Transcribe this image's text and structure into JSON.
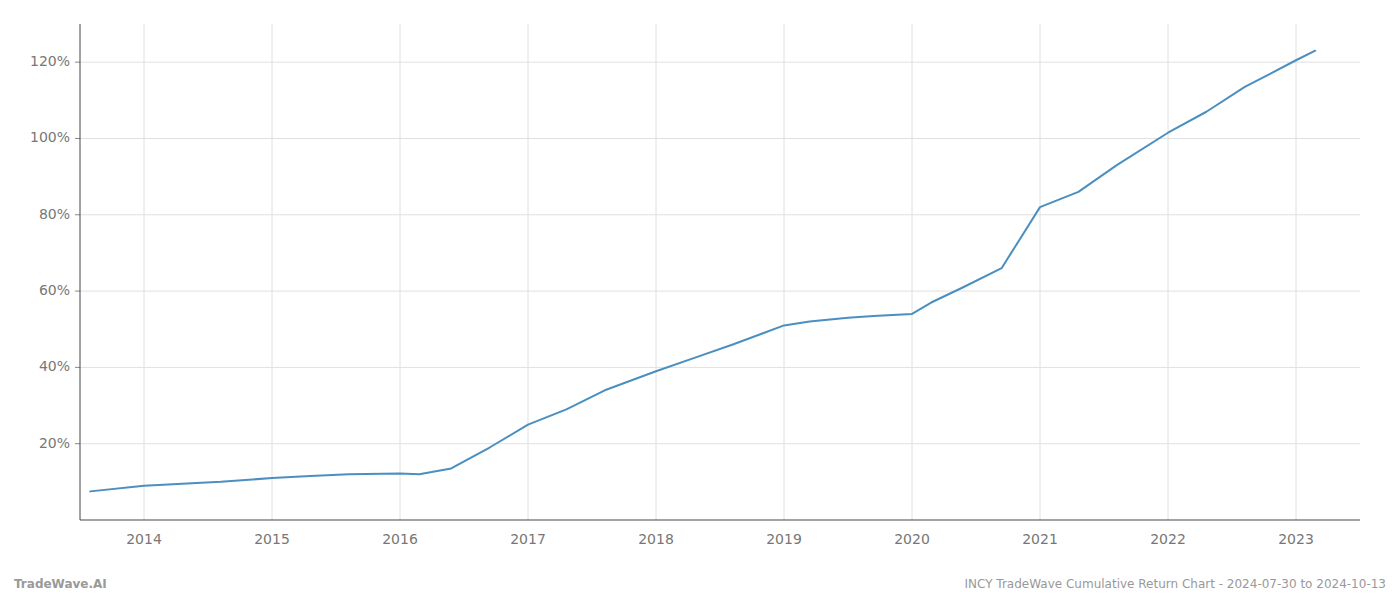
{
  "chart_data": {
    "type": "line",
    "x": [
      2013.58,
      2014.0,
      2014.3,
      2014.6,
      2015.0,
      2015.3,
      2015.6,
      2016.0,
      2016.15,
      2016.4,
      2016.7,
      2017.0,
      2017.3,
      2017.6,
      2018.0,
      2018.3,
      2018.6,
      2019.0,
      2019.2,
      2019.5,
      2019.7,
      2020.0,
      2020.15,
      2020.4,
      2020.7,
      2021.0,
      2021.3,
      2021.6,
      2022.0,
      2022.3,
      2022.6,
      2023.0,
      2023.15
    ],
    "values": [
      7.5,
      9.0,
      9.5,
      10.0,
      11.0,
      11.5,
      12.0,
      12.2,
      12.0,
      13.5,
      19.0,
      25.0,
      29.0,
      34.0,
      39.0,
      42.5,
      46.0,
      51.0,
      52.0,
      53.0,
      53.5,
      54.0,
      57.0,
      61.0,
      66.0,
      82.0,
      86.0,
      93.0,
      101.5,
      107.0,
      113.5,
      120.5,
      123.0
    ],
    "color": "#4a8fc0",
    "xlim": [
      2013.5,
      2023.5
    ],
    "ylim": [
      0,
      130
    ],
    "xticks": [
      2014,
      2015,
      2016,
      2017,
      2018,
      2019,
      2020,
      2021,
      2022,
      2023
    ],
    "yticks": [
      {
        "value": 20,
        "label": "20%"
      },
      {
        "value": 40,
        "label": "40%"
      },
      {
        "value": 60,
        "label": "60%"
      },
      {
        "value": 80,
        "label": "80%"
      },
      {
        "value": 100,
        "label": "100%"
      },
      {
        "value": 120,
        "label": "120%"
      }
    ],
    "grid": true,
    "annotations": [
      "TradeWave.AI",
      "INCY TradeWave Cumulative Return Chart - 2024-07-30 to 2024-10-13"
    ]
  }
}
